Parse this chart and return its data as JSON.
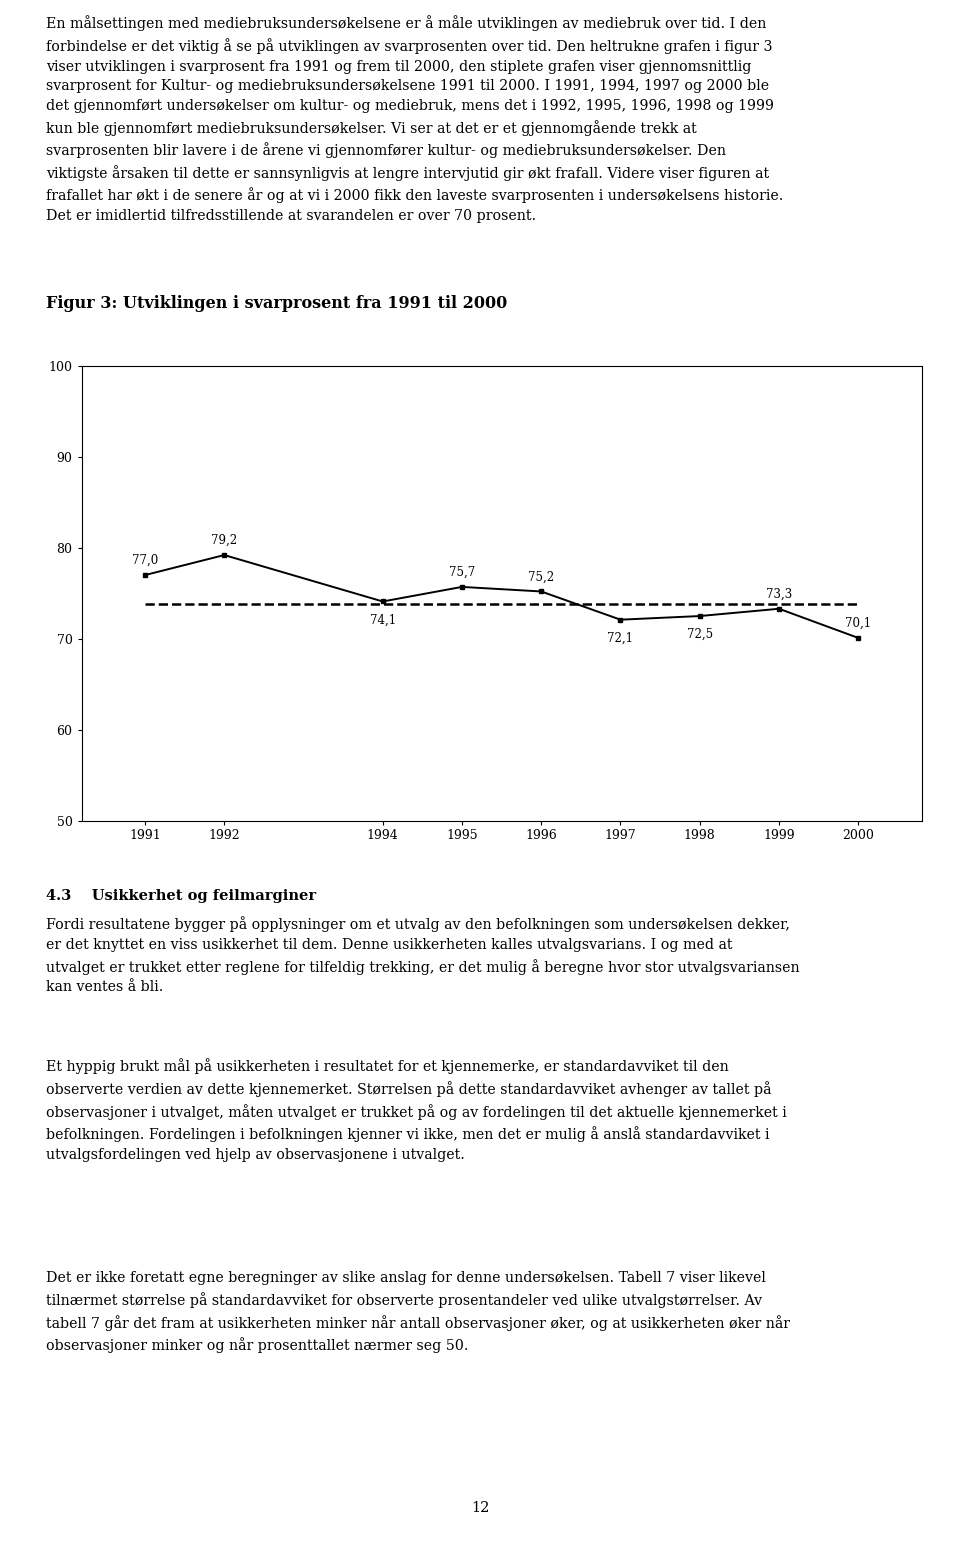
{
  "title": "Figur 3: Utviklingen i svarprosent fra 1991 til 2000",
  "x_labels": [
    "1991",
    "1992",
    "1994",
    "1995",
    "1996",
    "1997",
    "1998",
    "1999",
    "2000"
  ],
  "x_positions": [
    1991,
    1992,
    1994,
    1995,
    1996,
    1997,
    1998,
    1999,
    2000
  ],
  "solid_values": [
    77.0,
    79.2,
    74.1,
    75.7,
    75.2,
    72.1,
    72.5,
    73.3,
    70.1
  ],
  "dashed_value": 73.8,
  "ylim": [
    50,
    100
  ],
  "yticks": [
    50,
    60,
    70,
    80,
    90,
    100
  ],
  "data_labels": [
    "77,0",
    "79,2",
    "74,1",
    "75,7",
    "75,2",
    "72,1",
    "72,5",
    "73,3",
    "70,1"
  ],
  "label_offsets_y": [
    0.9,
    0.9,
    -1.3,
    0.9,
    0.9,
    -1.3,
    -1.3,
    0.9,
    0.9
  ],
  "background_color": "#ffffff",
  "line_color": "#000000",
  "dashed_color": "#000000",
  "text_color": "#000000",
  "body_text_1": "En målsettingen med mediebruksundersøkelsene er å måle utviklingen av mediebruk over tid. I den\nforbindelse er det viktig å se på utviklingen av svarprosenten over tid. Den heltrukne grafen i figur 3\nviser utviklingen i svarprosent fra 1991 og frem til 2000, den stiplete grafen viser gjennomsnittlig\nsvarprosent for Kultur- og mediebruksundersøkelsene 1991 til 2000. I 1991, 1994, 1997 og 2000 ble\ndet gjennomført undersøkelser om kultur- og mediebruk, mens det i 1992, 1995, 1996, 1998 og 1999\nkun ble gjennomført mediebruksundersøkelser. Vi ser at det er et gjennomgående trekk at\nsvarprosenten blir lavere i de årene vi gjennomfører kultur- og mediebruksundersøkelser. Den\nviktigste årsaken til dette er sannsynligvis at lengre intervjutid gir økt frafall. Videre viser figuren at\nfrafallet har økt i de senere år og at vi i 2000 fikk den laveste svarprosenten i undersøkelsens historie.\nDet er imidlertid tilfredsstillende at svarandelen er over 70 prosent.",
  "section_heading": "4.3",
  "section_subheading": "Usikkerhet og feilmarginer",
  "body_text_2": "Fordi resultatene bygger på opplysninger om et utvalg av den befolkningen som undersøkelsen dekker,\ner det knyttet en viss usikkerhet til dem. Denne usikkerheten kalles utvalgsvarians. I og med at\nutvalget er trukket etter reglene for tilfeldig trekking, er det mulig å beregne hvor stor utvalgsvariansen\nkan ventes å bli.",
  "body_text_3": "Et hyppig brukt mål på usikkerheten i resultatet for et kjennemerke, er standardavviket til den\nobserverte verdien av dette kjennemerket. Størrelsen på dette standardavviket avhenger av tallet på\nobservasjoner i utvalget, måten utvalget er trukket på og av fordelingen til det aktuelle kjennemerket i\nbefolkningen. Fordelingen i befolkningen kjenner vi ikke, men det er mulig å anslå standardavviket i\nutvalgsfordelingen ved hjelp av observasjonene i utvalget.",
  "body_text_4": "Det er ikke foretatt egne beregninger av slike anslag for denne undersøkelsen. Tabell 7 viser likevel\ntilnærmet størrelse på standardavviket for observerte prosentandeler ved ulike utvalgstørrelser. Av\ntabell 7 går det fram at usikkerheten minker når antall observasjoner øker, og at usikkerheten øker når\nobservasjoner minker og når prosenttallet nærmer seg 50.",
  "page_number": "12"
}
